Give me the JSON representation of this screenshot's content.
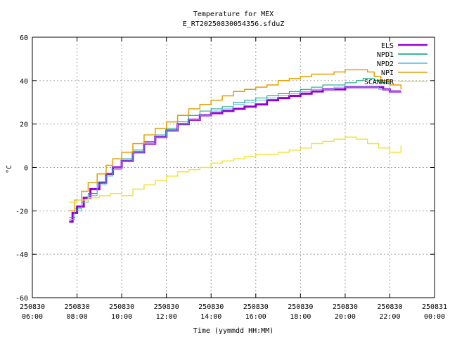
{
  "chart_data": {
    "type": "line",
    "title": "Temperature for MEX",
    "subtitle": "E_RT20250830054356.sfduZ",
    "xlabel": "Time (yymmdd HH:MM)",
    "ylabel": "°C",
    "xlim": [
      6.0,
      24.0
    ],
    "ylim": [
      -60,
      60
    ],
    "grid": true,
    "legend_position": "top-right",
    "x_ticks": [
      {
        "value": 6,
        "date": "250830",
        "time": "06:00"
      },
      {
        "value": 8,
        "date": "250830",
        "time": "08:00"
      },
      {
        "value": 10,
        "date": "250830",
        "time": "10:00"
      },
      {
        "value": 12,
        "date": "250830",
        "time": "12:00"
      },
      {
        "value": 14,
        "date": "250830",
        "time": "14:00"
      },
      {
        "value": 16,
        "date": "250830",
        "time": "16:00"
      },
      {
        "value": 18,
        "date": "250830",
        "time": "18:00"
      },
      {
        "value": 20,
        "date": "250830",
        "time": "20:00"
      },
      {
        "value": 22,
        "date": "250830",
        "time": "22:00"
      },
      {
        "value": 24,
        "date": "250831",
        "time": "00:00"
      }
    ],
    "y_ticks": [
      60,
      40,
      20,
      0,
      -20,
      -40,
      -60
    ],
    "series": [
      {
        "name": "ELS",
        "color": "#9400d3",
        "width": 3,
        "points": [
          [
            7.65,
            -25
          ],
          [
            7.8,
            -21
          ],
          [
            8.0,
            -18
          ],
          [
            8.3,
            -14
          ],
          [
            8.6,
            -10
          ],
          [
            9.0,
            -7
          ],
          [
            9.3,
            -3
          ],
          [
            9.6,
            0
          ],
          [
            10.0,
            3
          ],
          [
            10.5,
            7
          ],
          [
            11.0,
            11
          ],
          [
            11.5,
            14
          ],
          [
            12.0,
            17
          ],
          [
            12.5,
            20
          ],
          [
            13.0,
            22
          ],
          [
            13.5,
            24
          ],
          [
            14.0,
            25
          ],
          [
            14.5,
            26
          ],
          [
            15.0,
            27
          ],
          [
            15.5,
            28
          ],
          [
            16.0,
            29
          ],
          [
            16.5,
            31
          ],
          [
            17.0,
            32
          ],
          [
            17.5,
            33
          ],
          [
            18.0,
            34
          ],
          [
            18.5,
            35
          ],
          [
            19.0,
            36
          ],
          [
            19.5,
            36
          ],
          [
            20.0,
            37
          ],
          [
            20.5,
            37
          ],
          [
            21.0,
            37
          ],
          [
            21.5,
            37
          ],
          [
            21.7,
            36
          ],
          [
            22.0,
            35
          ],
          [
            22.5,
            35
          ]
        ]
      },
      {
        "name": "NPD1",
        "color": "#009e73",
        "width": 1,
        "points": [
          [
            7.65,
            -23
          ],
          [
            7.9,
            -19
          ],
          [
            8.2,
            -15
          ],
          [
            8.5,
            -12
          ],
          [
            8.9,
            -7
          ],
          [
            9.3,
            -3
          ],
          [
            9.6,
            0
          ],
          [
            10.0,
            4
          ],
          [
            10.5,
            8
          ],
          [
            11.0,
            12
          ],
          [
            11.5,
            15
          ],
          [
            12.0,
            18
          ],
          [
            12.5,
            21
          ],
          [
            13.0,
            24
          ],
          [
            13.5,
            26
          ],
          [
            14.0,
            27
          ],
          [
            14.5,
            28
          ],
          [
            15.0,
            30
          ],
          [
            15.5,
            31
          ],
          [
            16.0,
            32
          ],
          [
            16.5,
            33
          ],
          [
            17.0,
            34
          ],
          [
            17.5,
            35
          ],
          [
            18.0,
            36
          ],
          [
            18.5,
            37
          ],
          [
            19.0,
            38
          ],
          [
            19.5,
            38
          ],
          [
            20.0,
            39
          ],
          [
            20.5,
            40
          ],
          [
            20.8,
            41
          ],
          [
            21.0,
            41
          ],
          [
            21.3,
            40
          ],
          [
            21.6,
            39
          ],
          [
            22.0,
            38
          ],
          [
            22.5,
            37
          ]
        ]
      },
      {
        "name": "NPD2",
        "color": "#56b4e9",
        "width": 1,
        "points": [
          [
            7.65,
            -24
          ],
          [
            7.9,
            -20
          ],
          [
            8.2,
            -16
          ],
          [
            8.5,
            -13
          ],
          [
            8.9,
            -8
          ],
          [
            9.3,
            -4
          ],
          [
            9.6,
            -1
          ],
          [
            10.0,
            3
          ],
          [
            10.5,
            7
          ],
          [
            11.0,
            11
          ],
          [
            11.5,
            14
          ],
          [
            12.0,
            17
          ],
          [
            12.5,
            20
          ],
          [
            13.0,
            22
          ],
          [
            13.5,
            24
          ],
          [
            14.0,
            26
          ],
          [
            14.5,
            27
          ],
          [
            15.0,
            29
          ],
          [
            15.5,
            30
          ],
          [
            16.0,
            31
          ],
          [
            16.5,
            32
          ],
          [
            17.0,
            33
          ],
          [
            17.5,
            34
          ],
          [
            18.0,
            35
          ],
          [
            18.5,
            36
          ],
          [
            19.0,
            36
          ],
          [
            19.5,
            37
          ],
          [
            20.0,
            37
          ],
          [
            20.5,
            37
          ],
          [
            21.0,
            37
          ],
          [
            21.5,
            36
          ],
          [
            22.0,
            35
          ],
          [
            22.5,
            34
          ]
        ]
      },
      {
        "name": "NPI",
        "color": "#e69f00",
        "width": 1.5,
        "points": [
          [
            7.65,
            -20
          ],
          [
            7.9,
            -15
          ],
          [
            8.2,
            -11
          ],
          [
            8.5,
            -7
          ],
          [
            8.9,
            -3
          ],
          [
            9.3,
            1
          ],
          [
            9.6,
            4
          ],
          [
            10.0,
            7
          ],
          [
            10.5,
            11
          ],
          [
            11.0,
            15
          ],
          [
            11.5,
            18
          ],
          [
            12.0,
            21
          ],
          [
            12.5,
            24
          ],
          [
            13.0,
            27
          ],
          [
            13.5,
            29
          ],
          [
            14.0,
            31
          ],
          [
            14.5,
            33
          ],
          [
            15.0,
            35
          ],
          [
            15.5,
            36
          ],
          [
            16.0,
            37
          ],
          [
            16.5,
            38
          ],
          [
            17.0,
            40
          ],
          [
            17.5,
            41
          ],
          [
            18.0,
            42
          ],
          [
            18.5,
            43
          ],
          [
            19.0,
            43
          ],
          [
            19.5,
            44
          ],
          [
            20.0,
            45
          ],
          [
            20.5,
            45
          ],
          [
            21.0,
            44
          ],
          [
            21.3,
            42
          ],
          [
            21.6,
            40
          ],
          [
            22.0,
            38
          ],
          [
            22.5,
            36
          ]
        ]
      },
      {
        "name": "SCANNER",
        "color": "#f0e442",
        "width": 1.5,
        "points": [
          [
            7.65,
            -16
          ],
          [
            8.0,
            -15
          ],
          [
            8.5,
            -14
          ],
          [
            9.0,
            -13
          ],
          [
            9.5,
            -12
          ],
          [
            10.0,
            -13
          ],
          [
            10.5,
            -10
          ],
          [
            11.0,
            -8
          ],
          [
            11.5,
            -6
          ],
          [
            12.0,
            -4
          ],
          [
            12.5,
            -2
          ],
          [
            13.0,
            -1
          ],
          [
            13.5,
            0
          ],
          [
            14.0,
            2
          ],
          [
            14.5,
            3
          ],
          [
            15.0,
            4
          ],
          [
            15.5,
            5
          ],
          [
            16.0,
            6
          ],
          [
            16.5,
            6
          ],
          [
            17.0,
            7
          ],
          [
            17.5,
            8
          ],
          [
            18.0,
            9
          ],
          [
            18.5,
            11
          ],
          [
            19.0,
            12
          ],
          [
            19.5,
            13
          ],
          [
            20.0,
            14
          ],
          [
            20.5,
            13
          ],
          [
            21.0,
            11
          ],
          [
            21.5,
            9
          ],
          [
            22.0,
            7
          ],
          [
            22.5,
            10
          ]
        ]
      }
    ]
  }
}
